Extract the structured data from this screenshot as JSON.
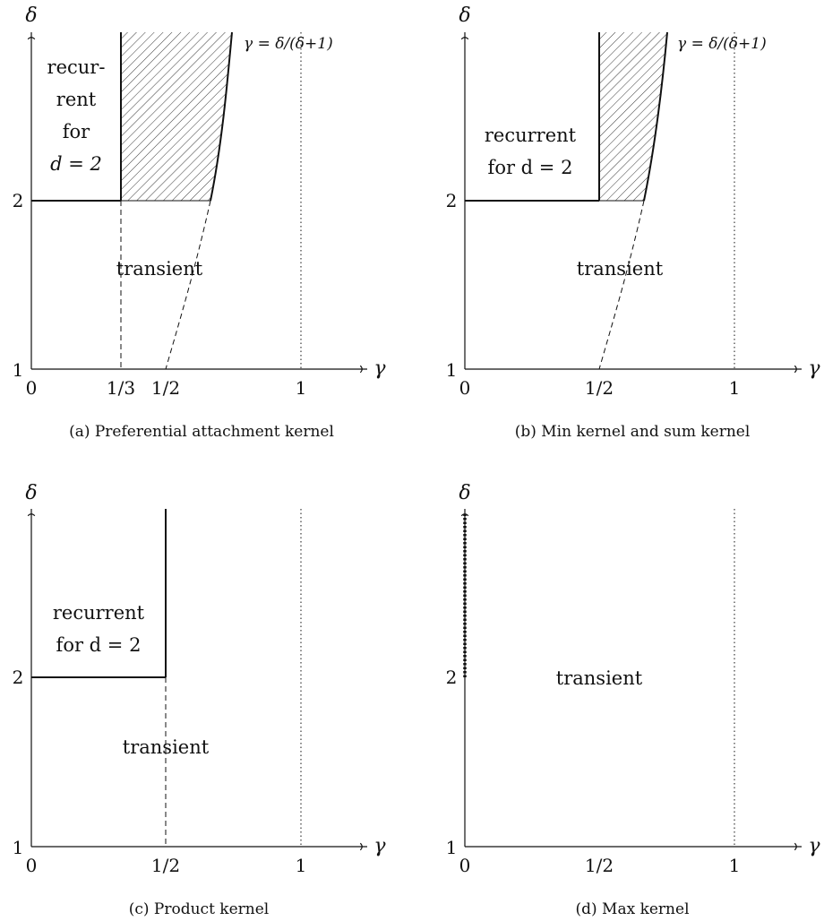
{
  "panels": [
    {
      "id": "a",
      "caption": "(a) Preferential attachment kernel",
      "x_axis_name": "γ",
      "y_axis_name": "δ",
      "x_ticks": [
        "0",
        "1/3",
        "1/2",
        "1"
      ],
      "y_ticks": [
        "1",
        "2"
      ],
      "recurrent_label_lines": [
        "recur-",
        "rent",
        "for",
        "d = 2"
      ],
      "transient_label": "transient",
      "curve_label": "γ = δ/(δ+1)"
    },
    {
      "id": "b",
      "caption": "(b) Min kernel and sum kernel",
      "x_axis_name": "γ",
      "y_axis_name": "δ",
      "x_ticks": [
        "0",
        "1/2",
        "1"
      ],
      "y_ticks": [
        "1",
        "2"
      ],
      "recurrent_label_lines": [
        "recurrent",
        "for d = 2"
      ],
      "transient_label": "transient",
      "curve_label": "γ = δ/(δ+1)"
    },
    {
      "id": "c",
      "caption": "(c) Product kernel",
      "x_axis_name": "γ",
      "y_axis_name": "δ",
      "x_ticks": [
        "0",
        "1/2",
        "1"
      ],
      "y_ticks": [
        "1",
        "2"
      ],
      "recurrent_label_lines": [
        "recurrent",
        "for d = 2"
      ],
      "transient_label": "transient"
    },
    {
      "id": "d",
      "caption": "(d) Max kernel",
      "x_axis_name": "γ",
      "y_axis_name": "δ",
      "x_ticks": [
        "0",
        "1/2",
        "1"
      ],
      "y_ticks": [
        "1",
        "2"
      ],
      "transient_label": "transient"
    }
  ]
}
